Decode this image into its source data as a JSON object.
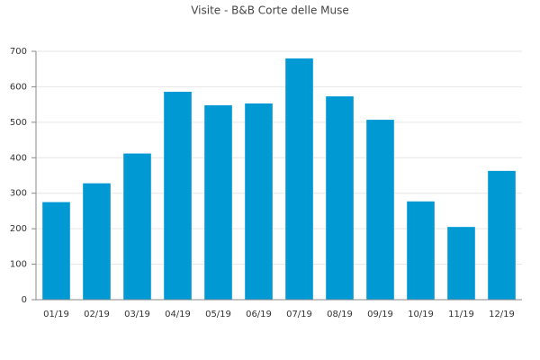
{
  "chart_data": {
    "type": "bar",
    "title": "Visite - B&B Corte delle Muse",
    "categories": [
      "01/19",
      "02/19",
      "03/19",
      "04/19",
      "05/19",
      "06/19",
      "07/19",
      "08/19",
      "09/19",
      "10/19",
      "11/19",
      "12/19"
    ],
    "values": [
      275,
      328,
      412,
      586,
      548,
      553,
      680,
      573,
      507,
      277,
      205,
      363
    ],
    "color": "#0099d4",
    "ylim": [
      0,
      700
    ],
    "yticks": [
      0,
      100,
      200,
      300,
      400,
      500,
      600,
      700
    ],
    "grid": true
  }
}
